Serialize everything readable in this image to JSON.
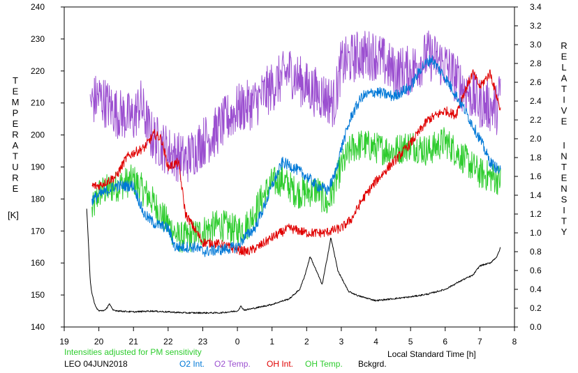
{
  "chart_data": {
    "type": "line",
    "title": "",
    "left_axis": {
      "label_letters": [
        "T",
        "E",
        "M",
        "P",
        "E",
        "R",
        "A",
        "T",
        "U",
        "R",
        "E"
      ],
      "unit": "[K]",
      "ylim": [
        140,
        240
      ],
      "ticks": [
        "140",
        "150",
        "160",
        "170",
        "180",
        "190",
        "200",
        "210",
        "220",
        "230",
        "240"
      ]
    },
    "right_axis": {
      "label_letters_1": [
        "R",
        "E",
        "L",
        "A",
        "T",
        "I",
        "V",
        "E"
      ],
      "label_letters_2": [
        "I",
        "N",
        "T",
        "E",
        "N",
        "S",
        "I",
        "T",
        "Y"
      ],
      "ylim": [
        0.0,
        3.4
      ],
      "ticks": [
        "0.0",
        "0.2",
        "0.4",
        "0.6",
        "0.8",
        "1.0",
        "1.2",
        "1.4",
        "1.6",
        "1.8",
        "2.0",
        "2.2",
        "2.4",
        "2.6",
        "2.8",
        "3.0",
        "3.2",
        "3.4"
      ]
    },
    "x_axis": {
      "label": "Local Standard Time [h]",
      "ticks": [
        "19",
        "20",
        "21",
        "22",
        "23",
        "0",
        "1",
        "2",
        "3",
        "4",
        "5",
        "6",
        "7",
        "8"
      ],
      "xlim": [
        19,
        32
      ]
    },
    "note": "Intensities adjusted for PM sensitivity",
    "station": "LEO 04JUN2018",
    "legend": [
      {
        "key": "o2int",
        "label": "O2 Int.",
        "color": "#0078d7"
      },
      {
        "key": "o2temp",
        "label": "O2 Temp.",
        "color": "#9b4fd0"
      },
      {
        "key": "ohint",
        "label": "OH Int.",
        "color": "#e00000"
      },
      {
        "key": "ohtemp",
        "label": "OH Temp.",
        "color": "#2ecc2e"
      },
      {
        "key": "bckgrd",
        "label": "Bckgrd.",
        "color": "#000000"
      }
    ],
    "series": [
      {
        "key": "o2temp",
        "axis": "left",
        "color": "#9b4fd0",
        "jitter": 8,
        "x": [
          19.75,
          20.0,
          20.5,
          21.0,
          21.2,
          21.5,
          22.0,
          22.5,
          23.0,
          23.3,
          23.7,
          24.0,
          24.5,
          25.0,
          25.5,
          26.0,
          26.5,
          26.8,
          27.0,
          27.5,
          28.0,
          28.5,
          29.0,
          29.5,
          30.0,
          30.5,
          31.0,
          31.5,
          31.6
        ],
        "y": [
          210,
          212,
          207,
          205,
          210,
          200,
          195,
          192,
          198,
          200,
          205,
          208,
          210,
          215,
          220,
          215,
          212,
          210,
          222,
          225,
          225,
          220,
          220,
          225,
          222,
          215,
          210,
          208,
          215
        ]
      },
      {
        "key": "o2int",
        "axis": "right",
        "color": "#0078d7",
        "jitter": 0.06,
        "x": [
          19.8,
          20.0,
          20.5,
          21.0,
          21.3,
          21.6,
          22.0,
          22.2,
          22.5,
          22.8,
          23.0,
          23.5,
          24.0,
          24.2,
          24.5,
          24.8,
          25.0,
          25.3,
          25.6,
          26.0,
          26.3,
          26.6,
          26.8,
          27.0,
          27.3,
          27.6,
          28.0,
          28.5,
          29.0,
          29.3,
          29.6,
          30.0,
          30.5,
          31.0,
          31.3,
          31.6
        ],
        "y": [
          1.35,
          1.4,
          1.5,
          1.5,
          1.2,
          1.1,
          1.05,
          0.85,
          0.85,
          0.85,
          0.8,
          0.82,
          0.85,
          0.95,
          1.05,
          1.3,
          1.5,
          1.75,
          1.7,
          1.6,
          1.5,
          1.45,
          1.6,
          1.9,
          2.25,
          2.45,
          2.5,
          2.45,
          2.55,
          2.75,
          2.85,
          2.65,
          2.35,
          2.0,
          1.75,
          1.65
        ]
      },
      {
        "key": "ohint",
        "axis": "right",
        "color": "#e00000",
        "jitter": 0.05,
        "x": [
          19.8,
          20.0,
          20.5,
          20.8,
          21.0,
          21.3,
          21.6,
          21.8,
          22.0,
          22.3,
          22.5,
          23.0,
          23.5,
          24.0,
          24.3,
          24.6,
          25.0,
          25.5,
          26.0,
          26.5,
          27.0,
          27.3,
          27.6,
          28.0,
          28.5,
          29.0,
          29.5,
          30.0,
          30.3,
          30.5,
          30.8,
          31.0,
          31.3,
          31.6
        ],
        "y": [
          1.5,
          1.5,
          1.6,
          1.8,
          1.85,
          1.9,
          2.05,
          2.0,
          1.7,
          1.75,
          1.2,
          0.9,
          0.88,
          0.82,
          0.8,
          0.85,
          0.95,
          1.05,
          1.0,
          1.0,
          1.05,
          1.15,
          1.35,
          1.55,
          1.75,
          1.95,
          2.2,
          2.3,
          2.25,
          2.45,
          2.7,
          2.55,
          2.7,
          2.3
        ]
      },
      {
        "key": "ohtemp",
        "axis": "left",
        "color": "#2ecc2e",
        "jitter": 5,
        "x": [
          19.8,
          20.0,
          20.5,
          21.0,
          21.5,
          22.0,
          22.3,
          22.6,
          23.0,
          23.5,
          24.0,
          24.3,
          24.7,
          25.0,
          25.3,
          25.7,
          26.0,
          26.3,
          26.6,
          27.0,
          27.3,
          27.6,
          28.0,
          28.5,
          29.0,
          29.5,
          30.0,
          30.5,
          31.0,
          31.3,
          31.6
        ],
        "y": [
          176,
          182,
          184,
          186,
          180,
          172,
          168,
          168,
          170,
          172,
          170,
          172,
          180,
          185,
          186,
          182,
          182,
          183,
          178,
          190,
          196,
          197,
          196,
          195,
          197,
          195,
          198,
          193,
          188,
          187,
          186
        ]
      },
      {
        "key": "bckgrd",
        "axis": "right",
        "color": "#000000",
        "jitter": 0.008,
        "x": [
          19.65,
          19.7,
          19.75,
          19.8,
          19.9,
          20.0,
          20.2,
          20.3,
          20.4,
          20.6,
          21.0,
          21.5,
          22.0,
          22.5,
          23.0,
          23.5,
          24.0,
          24.1,
          24.2,
          24.5,
          25.0,
          25.5,
          25.8,
          25.95,
          26.1,
          26.3,
          26.45,
          26.6,
          26.7,
          26.9,
          27.2,
          27.5,
          28.0,
          28.5,
          29.0,
          29.5,
          30.0,
          30.5,
          30.8,
          31.0,
          31.3,
          31.5,
          31.6
        ],
        "y": [
          1.25,
          0.9,
          0.5,
          0.35,
          0.22,
          0.17,
          0.18,
          0.25,
          0.18,
          0.17,
          0.16,
          0.17,
          0.16,
          0.15,
          0.15,
          0.15,
          0.17,
          0.22,
          0.18,
          0.2,
          0.24,
          0.3,
          0.4,
          0.55,
          0.75,
          0.58,
          0.45,
          0.75,
          0.95,
          0.6,
          0.38,
          0.33,
          0.28,
          0.3,
          0.32,
          0.35,
          0.4,
          0.5,
          0.55,
          0.65,
          0.68,
          0.75,
          0.85
        ]
      }
    ]
  }
}
